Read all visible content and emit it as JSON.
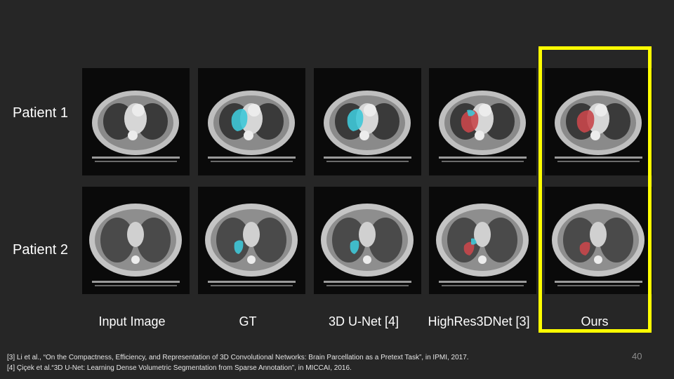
{
  "rows": [
    {
      "label": "Patient 1"
    },
    {
      "label": "Patient 2"
    }
  ],
  "columns": [
    {
      "label": "Input Image",
      "overlay": "none"
    },
    {
      "label": "GT",
      "overlay": "cyan"
    },
    {
      "label": "3D U-Net [4]",
      "overlay": "cyan"
    },
    {
      "label": "HighRes3DNet [3]",
      "overlay": "mixed"
    },
    {
      "label": "Ours",
      "overlay": "red"
    }
  ],
  "highlighted_column": "Ours",
  "colors": {
    "background": "#262626",
    "highlight_box": "#ffff00",
    "gt_overlay": "#3fc8d8",
    "pred_overlay": "#c8474b"
  },
  "references": [
    "[3] Li et al., “On the Compactness, Efficiency, and Representation of 3D Convolutional Networks: Brain Parcellation as a Pretext Task”, in IPMI, 2017.",
    "[4] Çiçek et al.“3D U-Net: Learning Dense Volumetric Segmentation from Sparse Annotation”, in MICCAI, 2016."
  ],
  "page_number": "40"
}
